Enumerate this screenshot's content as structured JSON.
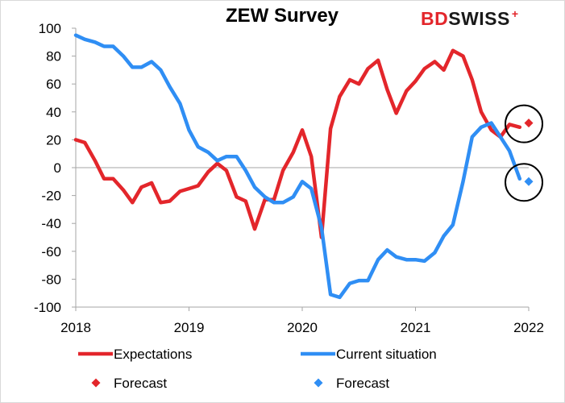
{
  "logo": {
    "part1": "BD",
    "part2": "SWISS",
    "mark": "+"
  },
  "chart_data": {
    "type": "line",
    "title": "ZEW Survey",
    "xlabel": "",
    "ylabel": "",
    "xlim": [
      2018,
      2022
    ],
    "ylim": [
      -100,
      100
    ],
    "x_ticks": [
      "2018",
      "2019",
      "2020",
      "2021",
      "2022"
    ],
    "y_ticks": [
      "100",
      "80",
      "60",
      "40",
      "20",
      "0",
      "-20",
      "-40",
      "-60",
      "-80",
      "-100"
    ],
    "grid": false,
    "legend_position": "bottom",
    "series": [
      {
        "name": "Expectations",
        "kind": "line",
        "color": "#e3262b",
        "points": [
          [
            2018.0,
            20
          ],
          [
            2018.08,
            18
          ],
          [
            2018.17,
            5
          ],
          [
            2018.25,
            -8
          ],
          [
            2018.33,
            -8
          ],
          [
            2018.42,
            -16
          ],
          [
            2018.5,
            -25
          ],
          [
            2018.58,
            -14
          ],
          [
            2018.67,
            -11
          ],
          [
            2018.75,
            -25
          ],
          [
            2018.83,
            -24
          ],
          [
            2018.92,
            -17
          ],
          [
            2019.0,
            -15
          ],
          [
            2019.08,
            -13
          ],
          [
            2019.17,
            -3
          ],
          [
            2019.25,
            3
          ],
          [
            2019.33,
            -2
          ],
          [
            2019.42,
            -21
          ],
          [
            2019.5,
            -24
          ],
          [
            2019.58,
            -44
          ],
          [
            2019.67,
            -23
          ],
          [
            2019.75,
            -23
          ],
          [
            2019.83,
            -2
          ],
          [
            2019.92,
            11
          ],
          [
            2020.0,
            27
          ],
          [
            2020.08,
            8
          ],
          [
            2020.17,
            -50
          ],
          [
            2020.25,
            28
          ],
          [
            2020.33,
            51
          ],
          [
            2020.42,
            63
          ],
          [
            2020.5,
            60
          ],
          [
            2020.58,
            71
          ],
          [
            2020.67,
            77
          ],
          [
            2020.75,
            56
          ],
          [
            2020.83,
            39
          ],
          [
            2020.92,
            55
          ],
          [
            2021.0,
            62
          ],
          [
            2021.08,
            71
          ],
          [
            2021.17,
            76
          ],
          [
            2021.25,
            70
          ],
          [
            2021.33,
            84
          ],
          [
            2021.42,
            80
          ],
          [
            2021.5,
            63
          ],
          [
            2021.58,
            40
          ],
          [
            2021.67,
            27
          ],
          [
            2021.75,
            22
          ],
          [
            2021.83,
            31
          ],
          [
            2021.92,
            29
          ]
        ]
      },
      {
        "name": "Current situation",
        "kind": "line",
        "color": "#2f8ef4",
        "points": [
          [
            2018.0,
            95
          ],
          [
            2018.08,
            92
          ],
          [
            2018.17,
            90
          ],
          [
            2018.25,
            87
          ],
          [
            2018.33,
            87
          ],
          [
            2018.42,
            80
          ],
          [
            2018.5,
            72
          ],
          [
            2018.58,
            72
          ],
          [
            2018.67,
            76
          ],
          [
            2018.75,
            70
          ],
          [
            2018.83,
            58
          ],
          [
            2018.92,
            46
          ],
          [
            2019.0,
            27
          ],
          [
            2019.08,
            15
          ],
          [
            2019.17,
            11
          ],
          [
            2019.25,
            5
          ],
          [
            2019.33,
            8
          ],
          [
            2019.42,
            8
          ],
          [
            2019.5,
            -2
          ],
          [
            2019.58,
            -14
          ],
          [
            2019.67,
            -21
          ],
          [
            2019.75,
            -25
          ],
          [
            2019.83,
            -25
          ],
          [
            2019.92,
            -21
          ],
          [
            2020.0,
            -10
          ],
          [
            2020.08,
            -15
          ],
          [
            2020.17,
            -43
          ],
          [
            2020.25,
            -91
          ],
          [
            2020.33,
            -93
          ],
          [
            2020.42,
            -83
          ],
          [
            2020.5,
            -81
          ],
          [
            2020.58,
            -81
          ],
          [
            2020.67,
            -66
          ],
          [
            2020.75,
            -59
          ],
          [
            2020.83,
            -64
          ],
          [
            2020.92,
            -66
          ],
          [
            2021.0,
            -66
          ],
          [
            2021.08,
            -67
          ],
          [
            2021.17,
            -61
          ],
          [
            2021.25,
            -49
          ],
          [
            2021.33,
            -41
          ],
          [
            2021.42,
            -10
          ],
          [
            2021.5,
            22
          ],
          [
            2021.58,
            29
          ],
          [
            2021.67,
            32
          ],
          [
            2021.75,
            22
          ],
          [
            2021.83,
            12
          ],
          [
            2021.92,
            -8
          ]
        ]
      },
      {
        "name": "Forecast",
        "kind": "marker",
        "color": "#e3262b",
        "points": [
          [
            2022.0,
            32
          ]
        ]
      },
      {
        "name": "Forecast",
        "kind": "marker",
        "color": "#2f8ef4",
        "points": [
          [
            2022.0,
            -10
          ]
        ]
      }
    ],
    "annotations": [
      {
        "type": "circle",
        "x": 2022.0,
        "y": 32
      },
      {
        "type": "circle",
        "x": 2022.0,
        "y": -10
      }
    ]
  }
}
